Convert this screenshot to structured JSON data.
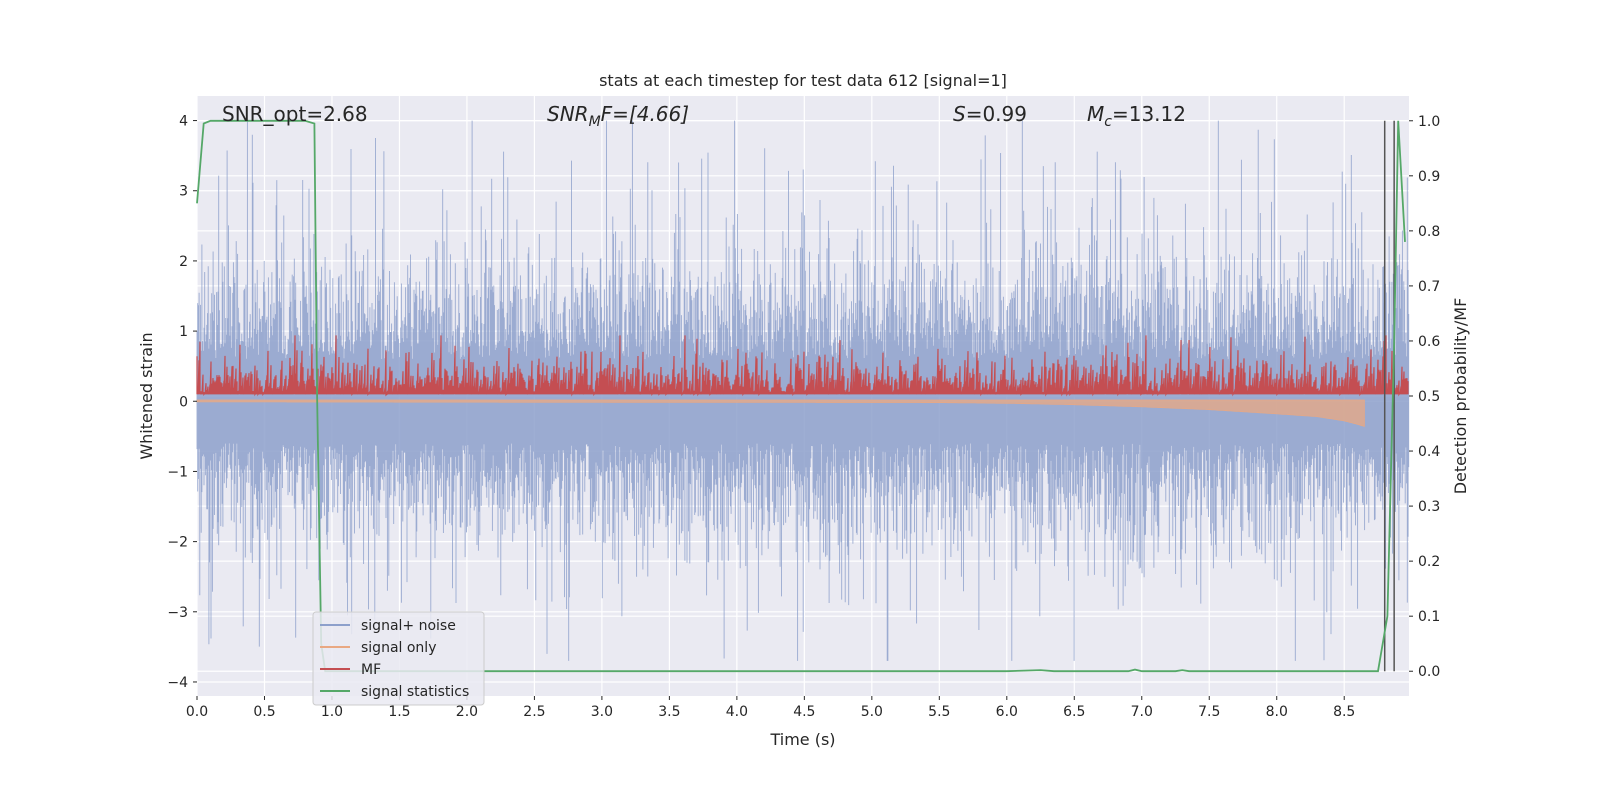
{
  "chart_data": {
    "type": "line",
    "title": "stats at each timestep for test data 612 [signal=1]",
    "xlabel": "Time (s)",
    "ylabel": "Whitened strain",
    "y2label": "Detection probability/MF",
    "xlim": [
      0.0,
      8.98
    ],
    "ylim": [
      -4.2,
      4.35
    ],
    "y2lim": [
      -0.045,
      1.045
    ],
    "xticks": [
      "0.0",
      "0.5",
      "1.0",
      "1.5",
      "2.0",
      "2.5",
      "3.0",
      "3.5",
      "4.0",
      "4.5",
      "5.0",
      "5.5",
      "6.0",
      "6.5",
      "7.0",
      "7.5",
      "8.0",
      "8.5"
    ],
    "yticks": [
      "4",
      "3",
      "2",
      "1",
      "0",
      "−1",
      "−2",
      "−3",
      "−4"
    ],
    "y2ticks": [
      "1.0",
      "0.9",
      "0.8",
      "0.7",
      "0.6",
      "0.5",
      "0.4",
      "0.3",
      "0.2",
      "0.1",
      "0.0"
    ],
    "grid": true,
    "legend_position": "lower-left",
    "annotations": {
      "snr_opt": "SNR_opt=2.68",
      "snr_mf_main": "SNR",
      "snr_mf_sub": "M",
      "snr_mf_rest": "F=[4.66]",
      "s_main": "S",
      "s_rest": "=0.99",
      "mc_main": "M",
      "mc_sub": "c",
      "mc_rest": "=13.12"
    },
    "legend": [
      {
        "name": "signal+ noise",
        "color": "#8da0cb"
      },
      {
        "name": "signal only",
        "color": "#e9a882"
      },
      {
        "name": "MF",
        "color": "#c44e52"
      },
      {
        "name": "signal statistics",
        "color": "#55a868"
      }
    ],
    "series": [
      {
        "name": "signal+ noise",
        "axis": "left",
        "description_only_visual": true,
        "noise_sigma": 1.0,
        "approx_range": [
          -3.7,
          4.0
        ]
      },
      {
        "name": "signal only",
        "axis": "left",
        "x": [
          0.0,
          5.5,
          6.0,
          6.5,
          7.0,
          7.5,
          8.0,
          8.3,
          8.5,
          8.6,
          8.65
        ],
        "amplitude": [
          0.01,
          0.02,
          0.03,
          0.05,
          0.08,
          0.12,
          0.18,
          0.22,
          0.28,
          0.33,
          0.36
        ]
      },
      {
        "name": "MF",
        "axis": "right",
        "baseline": 0.5,
        "approx_max": 0.61,
        "peaks": [
          {
            "x": 7.03,
            "y": 0.61
          },
          {
            "x": 8.8,
            "y": 0.6
          }
        ]
      },
      {
        "name": "signal statistics",
        "axis": "right",
        "x": [
          0.0,
          0.05,
          0.1,
          0.2,
          0.5,
          0.8,
          0.87,
          0.89,
          0.92,
          0.95,
          1.0,
          2.0,
          3.0,
          4.0,
          5.0,
          6.0,
          6.25,
          6.35,
          6.9,
          6.95,
          7.0,
          7.25,
          7.3,
          7.35,
          8.0,
          8.6,
          8.75,
          8.82,
          8.87,
          8.9,
          8.95
        ],
        "y": [
          0.85,
          0.995,
          1.0,
          1.0,
          1.0,
          1.0,
          0.995,
          0.5,
          0.05,
          0.0,
          0.0,
          0.0,
          0.0,
          0.0,
          0.0,
          0.0,
          0.002,
          0.0,
          0.0,
          0.003,
          0.0,
          0.0,
          0.002,
          0.0,
          0.0,
          0.0,
          0.0,
          0.1,
          0.6,
          1.0,
          0.78
        ]
      }
    ],
    "vertical_lines": [
      8.8,
      8.87
    ]
  }
}
